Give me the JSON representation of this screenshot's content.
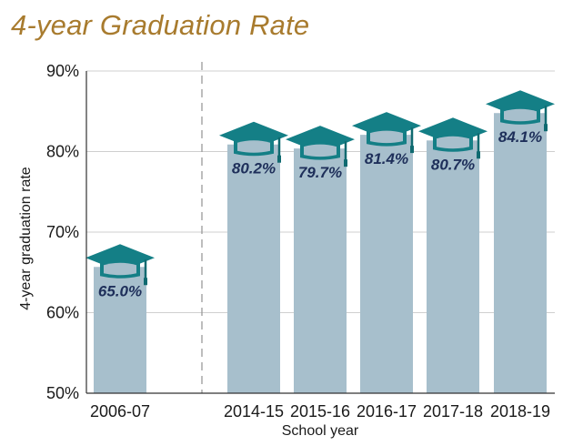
{
  "chart_data": {
    "type": "bar",
    "title": "4-year Graduation Rate",
    "xlabel": "School year",
    "ylabel": "4-year graduation rate",
    "categories": [
      "2006-07",
      "2014-15",
      "2015-16",
      "2016-17",
      "2017-18",
      "2018-19"
    ],
    "values": [
      65.0,
      80.2,
      79.7,
      81.4,
      80.7,
      84.1
    ],
    "data_labels": [
      "65.0%",
      "80.2%",
      "79.7%",
      "81.4%",
      "80.7%",
      "84.1%"
    ],
    "ylim": [
      50,
      90
    ],
    "yticks": [
      50,
      60,
      70,
      80,
      90
    ],
    "ytick_labels": [
      "50%",
      "60%",
      "70%",
      "80%",
      "90%"
    ],
    "grid": true,
    "colors": {
      "bar": "#a7bfcc",
      "cap": "#147f86",
      "cap_band": "#0f6a70",
      "label": "#1e2f5a",
      "title": "#a87b2e",
      "grid": "#cfcfcf",
      "separator": "#9a9a9a"
    },
    "decoration": "graduation-cap-icon"
  }
}
